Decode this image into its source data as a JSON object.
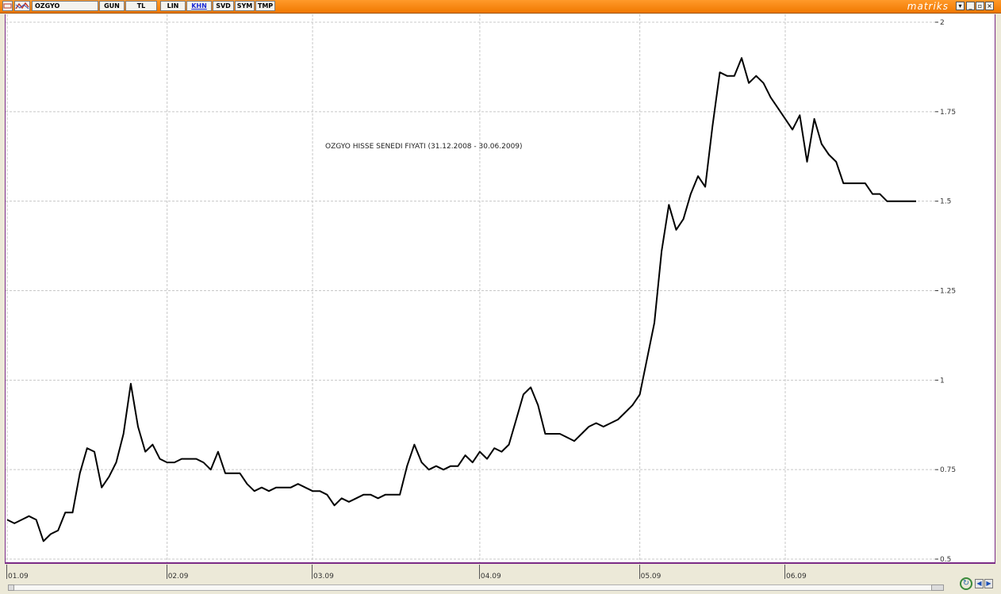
{
  "toolbar": {
    "symbol": "OZGYO",
    "buttons": [
      "GUN",
      "TL",
      "LIN",
      "KHN",
      "SVD",
      "SYM",
      "TMP"
    ],
    "active_button": "KHN",
    "brand": "matriks",
    "window_controls": [
      "▾",
      "_",
      "▫",
      "×"
    ],
    "colors": {
      "bar": "#f07800",
      "active": "#1c2bd6",
      "frame": "#7b2b86"
    }
  },
  "chart_data": {
    "type": "line",
    "title": "OZGYO HISSE SENEDI FIYATI (31.12.2008 - 30.06.2009)",
    "xlabel": "",
    "ylabel": "",
    "ylim": [
      0.5,
      2
    ],
    "yticks": [
      0.5,
      0.75,
      1,
      1.25,
      1.5,
      1.75,
      2
    ],
    "ytick_labels": [
      "0.5",
      "0.75",
      "1",
      "1.25",
      "1.5",
      "1.75",
      "2"
    ],
    "x_ticks": [
      {
        "label": "01.09",
        "index": 0
      },
      {
        "label": "02.09",
        "index": 22
      },
      {
        "label": "03.09",
        "index": 42
      },
      {
        "label": "04.09",
        "index": 65
      },
      {
        "label": "05.09",
        "index": 87
      },
      {
        "label": "06.09",
        "index": 107
      }
    ],
    "grid": true,
    "line_color": "#000000",
    "series": [
      {
        "values": [
          0.61,
          0.6,
          0.61,
          0.62,
          0.61,
          0.55,
          0.57,
          0.58,
          0.63,
          0.63,
          0.74,
          0.81,
          0.8,
          0.7,
          0.73,
          0.77,
          0.85,
          0.99,
          0.87,
          0.8,
          0.82,
          0.78,
          0.77,
          0.77,
          0.78,
          0.78,
          0.78,
          0.77,
          0.75,
          0.8,
          0.74,
          0.74,
          0.74,
          0.71,
          0.69,
          0.7,
          0.69,
          0.7,
          0.7,
          0.7,
          0.71,
          0.7,
          0.69,
          0.69,
          0.68,
          0.65,
          0.67,
          0.66,
          0.67,
          0.68,
          0.68,
          0.67,
          0.68,
          0.68,
          0.68,
          0.76,
          0.82,
          0.77,
          0.75,
          0.76,
          0.75,
          0.76,
          0.76,
          0.79,
          0.77,
          0.8,
          0.78,
          0.81,
          0.8,
          0.82,
          0.89,
          0.96,
          0.98,
          0.93,
          0.85,
          0.85,
          0.85,
          0.84,
          0.83,
          0.85,
          0.87,
          0.88,
          0.87,
          0.88,
          0.89,
          0.91,
          0.93,
          0.96,
          1.06,
          1.16,
          1.36,
          1.49,
          1.42,
          1.45,
          1.52,
          1.57,
          1.54,
          1.71,
          1.86,
          1.85,
          1.85,
          1.9,
          1.83,
          1.85,
          1.83,
          1.79,
          1.76,
          1.73,
          1.7,
          1.74,
          1.61,
          1.73,
          1.66,
          1.63,
          1.61,
          1.55,
          1.55,
          1.55,
          1.55,
          1.52,
          1.52,
          1.5,
          1.5,
          1.5,
          1.5,
          1.5
        ]
      }
    ]
  }
}
